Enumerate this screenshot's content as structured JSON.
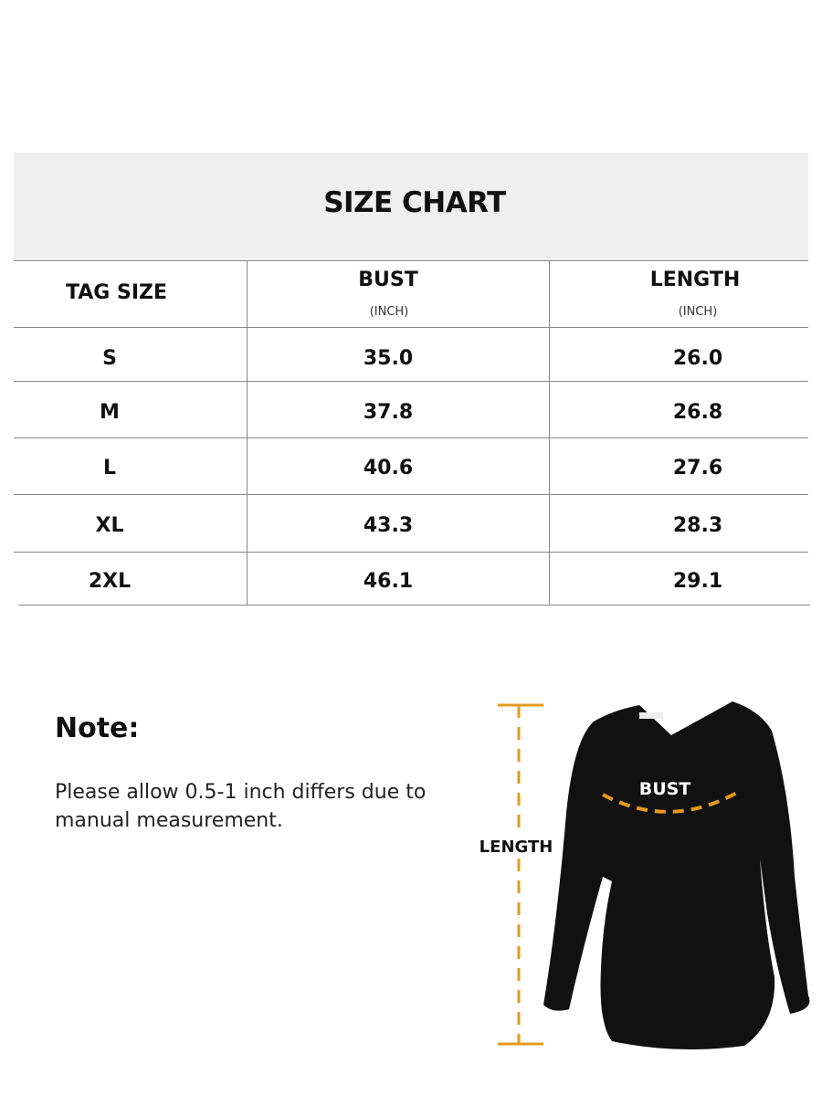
{
  "title": "SIZE CHART",
  "columns": [
    {
      "label": "TAG SIZE",
      "unit": ""
    },
    {
      "label": "BUST",
      "unit": "(INCH)"
    },
    {
      "label": "LENGTH",
      "unit": "(INCH)"
    }
  ],
  "rows": [
    [
      "S",
      "35.0",
      "26.0"
    ],
    [
      "M",
      "37.8",
      "26.8"
    ],
    [
      "L",
      "40.6",
      "27.6"
    ],
    [
      "XL",
      "43.3",
      "28.3"
    ],
    [
      "2XL",
      "46.1",
      "29.1"
    ]
  ],
  "note": {
    "heading": "Note:",
    "text": "Please allow 0.5-1 inch differs due to manual measurement."
  },
  "diagram": {
    "bust_label": "BUST",
    "length_label": "LENGTH",
    "accent_color": "#e59a1e",
    "garment_color": "#111111"
  }
}
